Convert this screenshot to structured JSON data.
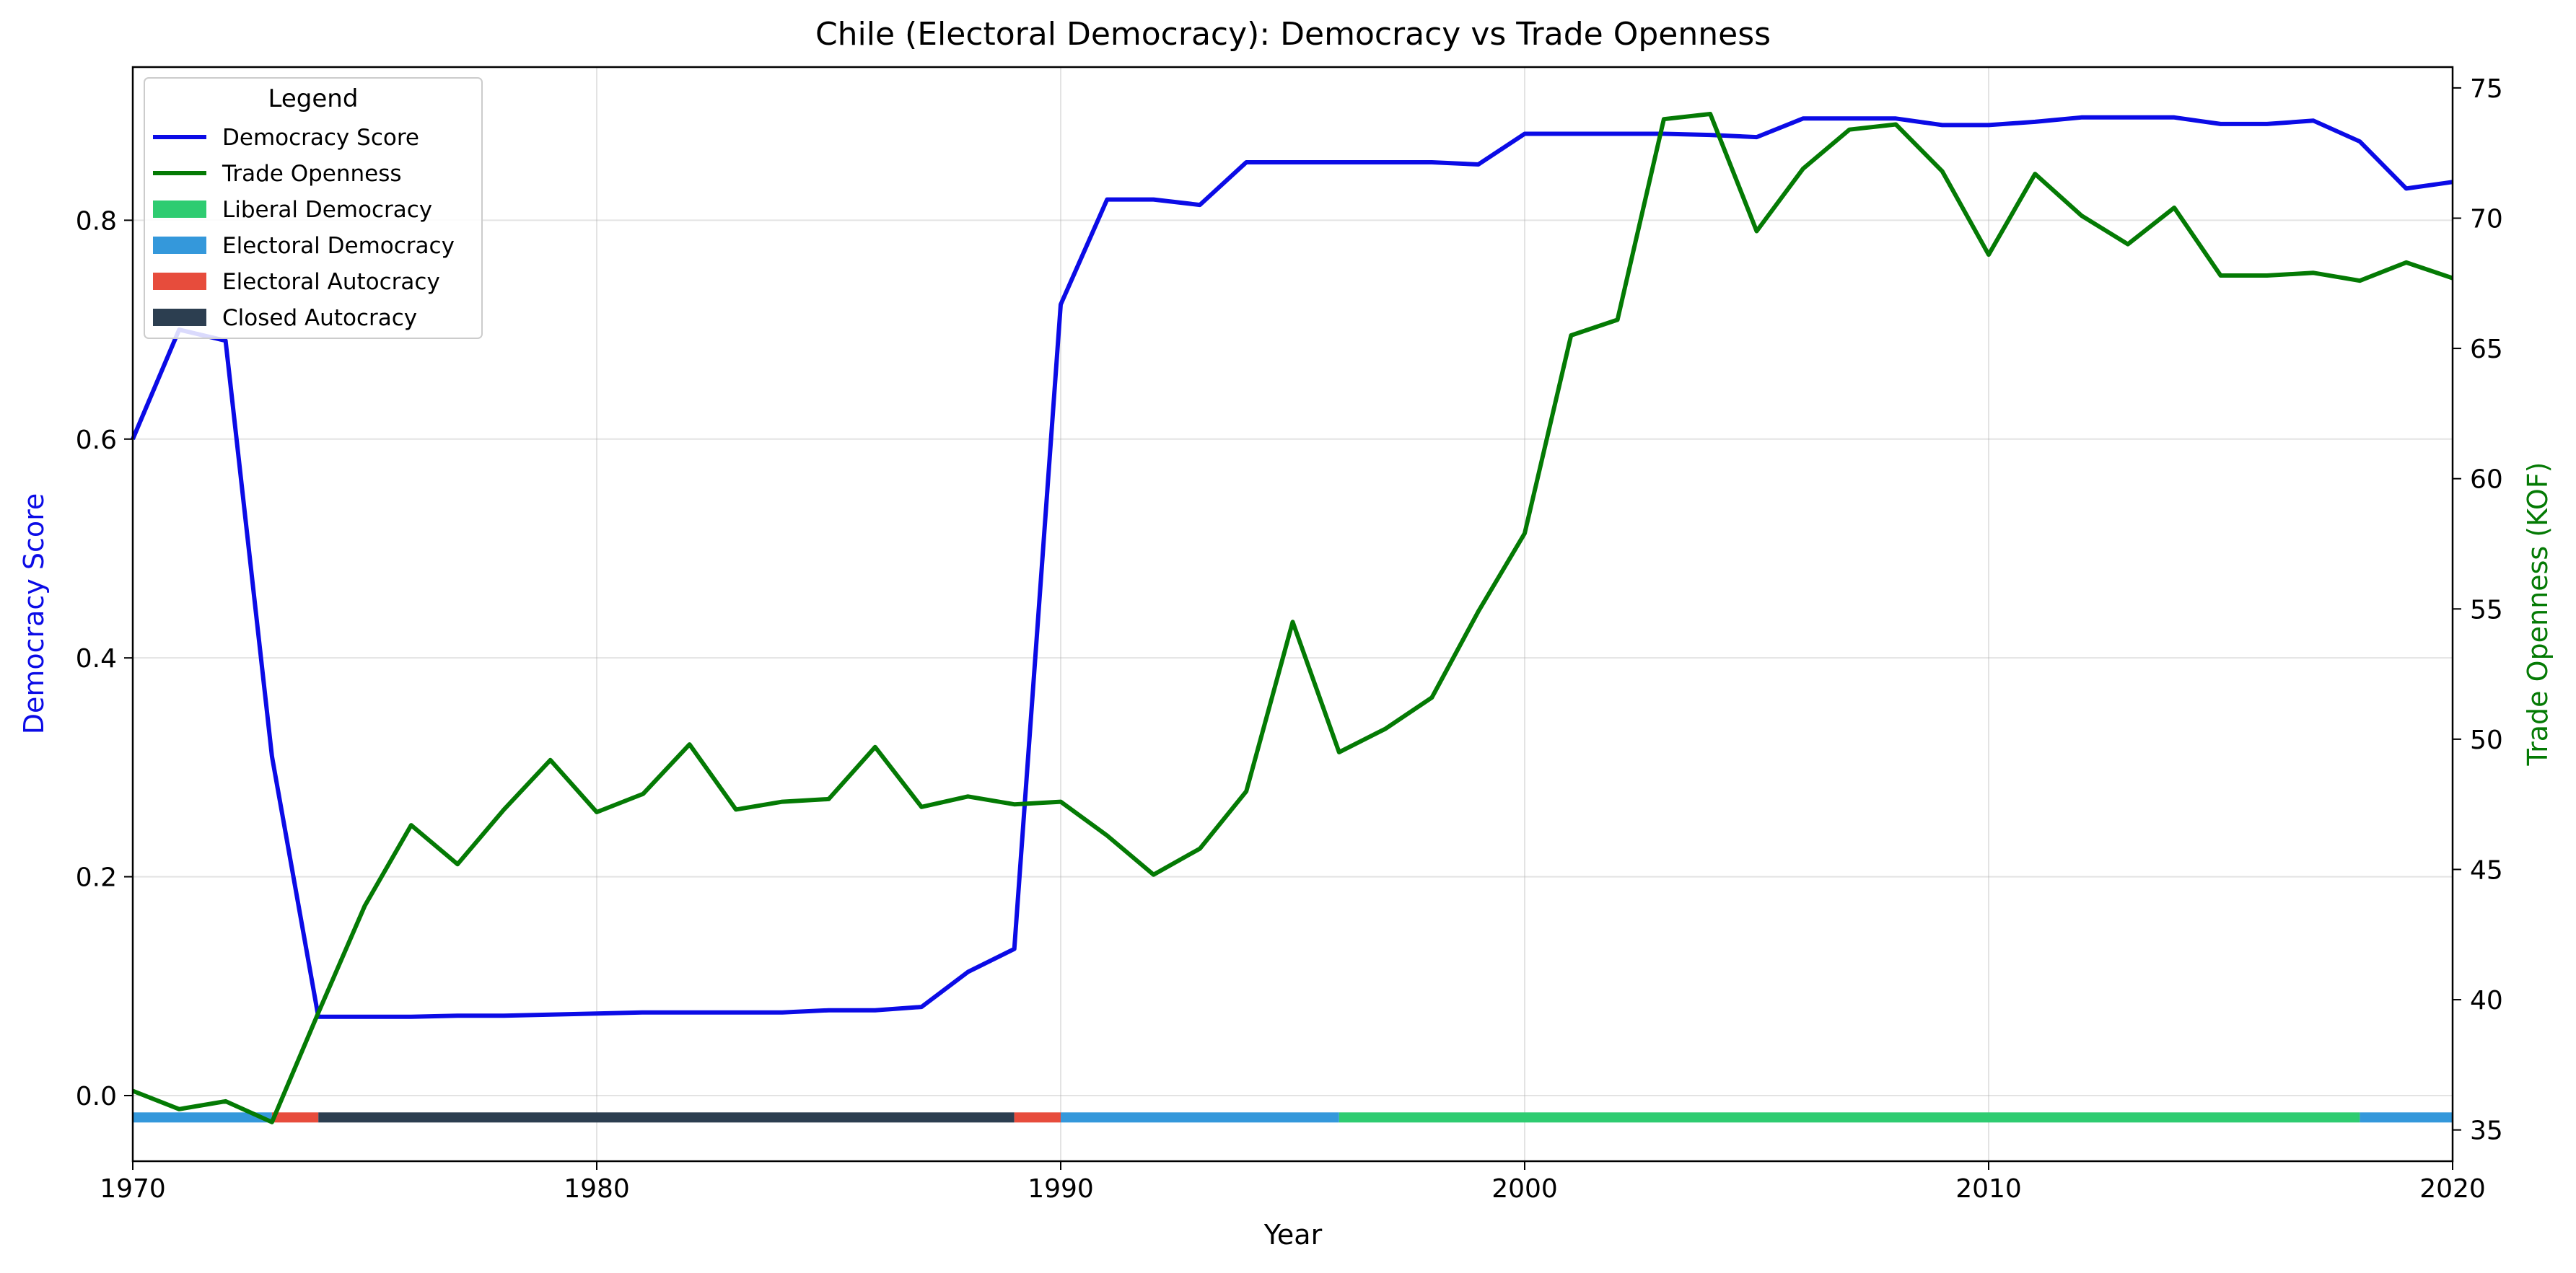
{
  "chart_data": {
    "type": "line",
    "title": "Chile (Electoral Democracy): Democracy vs Trade Openness",
    "xlabel": "Year",
    "ylabel_left": "Democracy Score",
    "ylabel_right": "Trade Openness (KOF)",
    "xlim": [
      1970,
      2020
    ],
    "ylim_left": [
      -0.06,
      0.94
    ],
    "ylim_right": [
      33.8,
      75.8
    ],
    "x_ticks": [
      1970,
      1980,
      1990,
      2000,
      2010,
      2020
    ],
    "y_ticks_left": [
      "0.0",
      "0.2",
      "0.4",
      "0.6",
      "0.8"
    ],
    "y_ticks_right": [
      "35",
      "40",
      "45",
      "50",
      "55",
      "60",
      "65",
      "70",
      "75"
    ],
    "grid": true,
    "legend": {
      "title": "Legend",
      "placement": "top-left",
      "entries": [
        {
          "label": "Democracy Score",
          "kind": "line",
          "color": "#0b0be6"
        },
        {
          "label": "Trade Openness",
          "kind": "line",
          "color": "#047a04"
        },
        {
          "label": "Liberal Democracy",
          "kind": "patch",
          "color": "#2ecc71"
        },
        {
          "label": "Electoral Democracy",
          "kind": "patch",
          "color": "#3498db"
        },
        {
          "label": "Electoral Autocracy",
          "kind": "patch",
          "color": "#e74c3c"
        },
        {
          "label": "Closed Autocracy",
          "kind": "patch",
          "color": "#2c3e50"
        }
      ]
    },
    "series": [
      {
        "name": "Democracy Score",
        "axis": "left",
        "color": "#0b0be6",
        "x": [
          1970,
          1971,
          1972,
          1973,
          1974,
          1975,
          1976,
          1977,
          1978,
          1979,
          1980,
          1981,
          1982,
          1983,
          1984,
          1985,
          1986,
          1987,
          1988,
          1989,
          1990,
          1991,
          1992,
          1993,
          1994,
          1995,
          1996,
          1997,
          1998,
          1999,
          2000,
          2001,
          2002,
          2003,
          2004,
          2005,
          2006,
          2007,
          2008,
          2009,
          2010,
          2011,
          2012,
          2013,
          2014,
          2015,
          2016,
          2017,
          2018,
          2019,
          2020
        ],
        "values": [
          0.6,
          0.7,
          0.69,
          0.31,
          0.072,
          0.072,
          0.072,
          0.073,
          0.073,
          0.074,
          0.075,
          0.076,
          0.076,
          0.076,
          0.076,
          0.078,
          0.078,
          0.081,
          0.113,
          0.134,
          0.723,
          0.819,
          0.819,
          0.814,
          0.853,
          0.853,
          0.853,
          0.853,
          0.853,
          0.851,
          0.879,
          0.879,
          0.879,
          0.879,
          0.878,
          0.876,
          0.893,
          0.893,
          0.893,
          0.887,
          0.887,
          0.89,
          0.894,
          0.894,
          0.894,
          0.888,
          0.888,
          0.891,
          0.872,
          0.829,
          0.835
        ]
      },
      {
        "name": "Trade Openness",
        "axis": "right",
        "color": "#047a04",
        "x": [
          1970,
          1971,
          1972,
          1973,
          1974,
          1975,
          1976,
          1977,
          1978,
          1979,
          1980,
          1981,
          1982,
          1983,
          1984,
          1985,
          1986,
          1987,
          1988,
          1989,
          1990,
          1991,
          1992,
          1993,
          1994,
          1995,
          1996,
          1997,
          1998,
          1999,
          2000,
          2001,
          2002,
          2003,
          2004,
          2005,
          2006,
          2007,
          2008,
          2009,
          2010,
          2011,
          2012,
          2013,
          2014,
          2015,
          2016,
          2017,
          2018,
          2019,
          2020
        ],
        "values": [
          36.5,
          35.8,
          36.1,
          35.3,
          39.5,
          43.6,
          46.7,
          45.2,
          47.3,
          49.2,
          47.2,
          47.9,
          49.8,
          47.3,
          47.6,
          47.7,
          49.7,
          47.4,
          47.8,
          47.5,
          47.6,
          46.3,
          44.8,
          45.8,
          48.0,
          54.5,
          49.5,
          50.4,
          51.6,
          54.9,
          57.9,
          65.5,
          66.1,
          73.8,
          74.0,
          69.5,
          71.9,
          73.4,
          73.6,
          71.8,
          68.6,
          71.7,
          70.1,
          69.0,
          70.4,
          67.8,
          67.8,
          67.9,
          67.6,
          68.3,
          67.7
        ]
      }
    ],
    "regime_segments": [
      {
        "start": 1970,
        "end": 1973,
        "regime": "Electoral Democracy",
        "color": "#3498db"
      },
      {
        "start": 1973,
        "end": 1974,
        "regime": "Electoral Autocracy",
        "color": "#e74c3c"
      },
      {
        "start": 1974,
        "end": 1989,
        "regime": "Closed Autocracy",
        "color": "#2c3e50"
      },
      {
        "start": 1989,
        "end": 1990,
        "regime": "Electoral Autocracy",
        "color": "#e74c3c"
      },
      {
        "start": 1990,
        "end": 1996,
        "regime": "Electoral Democracy",
        "color": "#3498db"
      },
      {
        "start": 1996,
        "end": 2018,
        "regime": "Liberal Democracy",
        "color": "#2ecc71"
      },
      {
        "start": 2018,
        "end": 2020,
        "regime": "Electoral Democracy",
        "color": "#3498db"
      }
    ],
    "regime_band_value": -0.02
  }
}
